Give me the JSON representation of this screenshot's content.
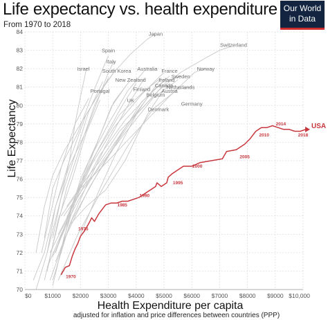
{
  "header": {
    "title": "Life expectancy vs. health expenditure",
    "subtitle": "From 1970 to 2018",
    "logo_line1": "Our World",
    "logo_line2": "in Data"
  },
  "chart_data": {
    "type": "line",
    "title": "Life expectancy vs. health expenditure",
    "subtitle": "From 1970 to 2018",
    "xlabel": "Health Expenditure per capita",
    "xlabel_note": "adjusted for inflation and price differences between countries (PPP)",
    "ylabel": "Life Expectancy",
    "xlim": [
      0,
      10000
    ],
    "ylim": [
      70,
      84
    ],
    "x_ticks": [
      0,
      1000,
      2000,
      3000,
      4000,
      5000,
      6000,
      7000,
      8000,
      9000,
      10000
    ],
    "x_tick_labels": [
      "$0",
      "$1000",
      "$2000",
      "$3000",
      "$4000",
      "$5000",
      "$6000",
      "$7000",
      "$8000",
      "$9000",
      "$10,000"
    ],
    "y_ticks": [
      70,
      71,
      72,
      73,
      74,
      75,
      76,
      77,
      78,
      79,
      80,
      81,
      82,
      83,
      84
    ],
    "grid": true,
    "colors": {
      "usa": "#c8363d",
      "others": "#c8c8c8",
      "labels": "#6e6e6e",
      "logo_bg": "#12243f",
      "logo_accent": "#ce2d2d"
    },
    "usa_series": {
      "name": "USA",
      "points": [
        {
          "x": 1300,
          "y": 70.8
        },
        {
          "x": 1450,
          "y": 71.2
        },
        {
          "x": 1600,
          "y": 71.3
        },
        {
          "x": 1700,
          "y": 71.8
        },
        {
          "x": 1800,
          "y": 72.2
        },
        {
          "x": 1900,
          "y": 72.5
        },
        {
          "x": 2000,
          "y": 72.9
        },
        {
          "x": 2150,
          "y": 73.2
        },
        {
          "x": 2300,
          "y": 73.6
        },
        {
          "x": 2400,
          "y": 73.9
        },
        {
          "x": 2500,
          "y": 73.7
        },
        {
          "x": 2650,
          "y": 74.1
        },
        {
          "x": 2800,
          "y": 74.4
        },
        {
          "x": 2900,
          "y": 74.6
        },
        {
          "x": 3100,
          "y": 74.7
        },
        {
          "x": 3300,
          "y": 74.7
        },
        {
          "x": 3500,
          "y": 74.8
        },
        {
          "x": 3700,
          "y": 74.8
        },
        {
          "x": 3900,
          "y": 74.9
        },
        {
          "x": 4100,
          "y": 75.0
        },
        {
          "x": 4300,
          "y": 75.2
        },
        {
          "x": 4500,
          "y": 75.4
        },
        {
          "x": 4700,
          "y": 75.6
        },
        {
          "x": 4750,
          "y": 75.8
        },
        {
          "x": 4900,
          "y": 75.6
        },
        {
          "x": 5100,
          "y": 75.8
        },
        {
          "x": 5150,
          "y": 76.1
        },
        {
          "x": 5300,
          "y": 76.3
        },
        {
          "x": 5500,
          "y": 76.5
        },
        {
          "x": 5700,
          "y": 76.7
        },
        {
          "x": 6000,
          "y": 76.7
        },
        {
          "x": 6300,
          "y": 76.9
        },
        {
          "x": 6700,
          "y": 77.0
        },
        {
          "x": 7100,
          "y": 77.1
        },
        {
          "x": 7250,
          "y": 77.5
        },
        {
          "x": 7600,
          "y": 77.6
        },
        {
          "x": 7900,
          "y": 77.9
        },
        {
          "x": 8100,
          "y": 78.2
        },
        {
          "x": 8300,
          "y": 78.6
        },
        {
          "x": 8500,
          "y": 78.8
        },
        {
          "x": 8700,
          "y": 78.8
        },
        {
          "x": 8900,
          "y": 78.9
        },
        {
          "x": 9100,
          "y": 78.8
        },
        {
          "x": 9300,
          "y": 78.7
        },
        {
          "x": 9500,
          "y": 78.7
        },
        {
          "x": 9700,
          "y": 78.6
        },
        {
          "x": 9900,
          "y": 78.6
        },
        {
          "x": 10100,
          "y": 78.7
        }
      ],
      "year_labels": [
        {
          "year": "1970",
          "x": 1650,
          "y": 70.7
        },
        {
          "year": "1975",
          "x": 2100,
          "y": 73.3
        },
        {
          "year": "1985",
          "x": 3500,
          "y": 74.6
        },
        {
          "year": "1990",
          "x": 4300,
          "y": 75.1
        },
        {
          "year": "1995",
          "x": 5500,
          "y": 75.8
        },
        {
          "year": "2000",
          "x": 6200,
          "y": 76.7
        },
        {
          "year": "2005",
          "x": 7900,
          "y": 77.2
        },
        {
          "year": "2010",
          "x": 8600,
          "y": 78.4
        },
        {
          "year": "2014",
          "x": 9200,
          "y": 79.0
        },
        {
          "year": "2018",
          "x": 10000,
          "y": 78.4
        }
      ]
    },
    "countries": [
      {
        "name": "Japan",
        "x": 4700,
        "y": 83.9,
        "points": [
          [
            400,
            72.0
          ],
          [
            700,
            74.5
          ],
          [
            1000,
            76.2
          ],
          [
            1400,
            77.5
          ],
          [
            2000,
            79.0
          ],
          [
            2600,
            80.5
          ],
          [
            3200,
            81.8
          ],
          [
            3800,
            82.8
          ],
          [
            4400,
            83.6
          ],
          [
            4700,
            83.9
          ]
        ]
      },
      {
        "name": "Switzerland",
        "x": 7500,
        "y": 83.3,
        "points": [
          [
            2000,
            73.0
          ],
          [
            2700,
            75.5
          ],
          [
            3300,
            77.5
          ],
          [
            4000,
            79.5
          ],
          [
            4800,
            80.8
          ],
          [
            5600,
            81.8
          ],
          [
            6400,
            82.5
          ],
          [
            7000,
            83.0
          ],
          [
            7400,
            83.2
          ]
        ]
      },
      {
        "name": "Spain",
        "x": 3000,
        "y": 83.0,
        "points": [
          [
            700,
            72.8
          ],
          [
            1000,
            75.5
          ],
          [
            1400,
            77.0
          ],
          [
            1900,
            78.5
          ],
          [
            2400,
            80.5
          ],
          [
            2800,
            82.0
          ],
          [
            3000,
            82.7
          ]
        ]
      },
      {
        "name": "Italy",
        "x": 3100,
        "y": 82.4,
        "points": [
          [
            800,
            72.0
          ],
          [
            1100,
            74.5
          ],
          [
            1600,
            76.7
          ],
          [
            2200,
            78.6
          ],
          [
            2600,
            80.2
          ],
          [
            3000,
            81.8
          ],
          [
            3200,
            82.4
          ]
        ]
      },
      {
        "name": "Israel",
        "x": 2100,
        "y": 82.0,
        "points": [
          [
            1000,
            72.8
          ],
          [
            1300,
            75.0
          ],
          [
            1600,
            77.0
          ],
          [
            1800,
            79.0
          ],
          [
            2000,
            80.5
          ],
          [
            2200,
            81.9
          ]
        ]
      },
      {
        "name": "South Korea",
        "x": 3300,
        "y": 81.9,
        "points": [
          [
            300,
            70.5
          ],
          [
            700,
            72.0
          ],
          [
            1100,
            74.5
          ],
          [
            1600,
            77.0
          ],
          [
            2200,
            79.5
          ],
          [
            2800,
            81.0
          ],
          [
            3300,
            82.0
          ]
        ]
      },
      {
        "name": "Australia",
        "x": 4400,
        "y": 82.0,
        "points": [
          [
            1200,
            71.5
          ],
          [
            1700,
            74.5
          ],
          [
            2300,
            77.0
          ],
          [
            3000,
            79.0
          ],
          [
            3700,
            80.8
          ],
          [
            4300,
            81.9
          ]
        ]
      },
      {
        "name": "France",
        "x": 5200,
        "y": 81.9,
        "points": [
          [
            1100,
            72.0
          ],
          [
            1700,
            74.5
          ],
          [
            2400,
            76.8
          ],
          [
            3200,
            78.8
          ],
          [
            4200,
            80.6
          ],
          [
            5000,
            81.8
          ]
        ]
      },
      {
        "name": "Norway",
        "x": 6500,
        "y": 82.0,
        "points": [
          [
            1300,
            74.0
          ],
          [
            2000,
            75.5
          ],
          [
            3000,
            77.0
          ],
          [
            4000,
            78.6
          ],
          [
            5200,
            80.5
          ],
          [
            6100,
            81.8
          ],
          [
            6500,
            82.0
          ]
        ]
      },
      {
        "name": "Sweden",
        "x": 5600,
        "y": 81.6,
        "points": [
          [
            1500,
            74.5
          ],
          [
            2100,
            75.8
          ],
          [
            2700,
            77.0
          ],
          [
            3400,
            78.6
          ],
          [
            4300,
            80.0
          ],
          [
            5100,
            81.3
          ],
          [
            5600,
            81.6
          ]
        ]
      },
      {
        "name": "Ireland",
        "x": 5100,
        "y": 81.4,
        "points": [
          [
            800,
            71.2
          ],
          [
            1300,
            73.0
          ],
          [
            1900,
            74.8
          ],
          [
            2700,
            76.8
          ],
          [
            3700,
            79.0
          ],
          [
            4600,
            80.8
          ],
          [
            5100,
            81.5
          ]
        ]
      },
      {
        "name": "New Zealand",
        "x": 3800,
        "y": 81.4,
        "points": [
          [
            1000,
            71.8
          ],
          [
            1500,
            73.5
          ],
          [
            2000,
            76.0
          ],
          [
            2600,
            78.0
          ],
          [
            3200,
            80.2
          ],
          [
            3800,
            81.4
          ]
        ]
      },
      {
        "name": "Canada",
        "x": 5000,
        "y": 81.1,
        "points": [
          [
            1200,
            72.5
          ],
          [
            1800,
            75.0
          ],
          [
            2600,
            77.5
          ],
          [
            3400,
            79.5
          ],
          [
            4300,
            80.8
          ],
          [
            4900,
            81.5
          ]
        ]
      },
      {
        "name": "Netherlands",
        "x": 5600,
        "y": 81.0,
        "points": [
          [
            1400,
            74.0
          ],
          [
            2000,
            75.3
          ],
          [
            2700,
            76.7
          ],
          [
            3600,
            78.5
          ],
          [
            4600,
            80.4
          ],
          [
            5500,
            81.4
          ]
        ]
      },
      {
        "name": "Finland",
        "x": 4200,
        "y": 80.9,
        "points": [
          [
            1000,
            70.5
          ],
          [
            1600,
            73.5
          ],
          [
            2200,
            75.6
          ],
          [
            2900,
            77.8
          ],
          [
            3700,
            80.0
          ],
          [
            4300,
            81.5
          ]
        ]
      },
      {
        "name": "Austria",
        "x": 5200,
        "y": 80.8,
        "points": [
          [
            900,
            70.5
          ],
          [
            1500,
            73.0
          ],
          [
            2300,
            75.5
          ],
          [
            3200,
            77.8
          ],
          [
            4200,
            80.2
          ],
          [
            5200,
            81.6
          ]
        ]
      },
      {
        "name": "Portugal",
        "x": 2700,
        "y": 80.8,
        "points": [
          [
            400,
            70.0
          ],
          [
            800,
            72.0
          ],
          [
            1300,
            75.0
          ],
          [
            1800,
            77.3
          ],
          [
            2300,
            79.7
          ],
          [
            2800,
            81.3
          ]
        ]
      },
      {
        "name": "Belgium",
        "x": 4700,
        "y": 80.6,
        "points": [
          [
            1100,
            71.5
          ],
          [
            1700,
            73.8
          ],
          [
            2500,
            76.0
          ],
          [
            3400,
            78.2
          ],
          [
            4300,
            80.2
          ],
          [
            4900,
            81.5
          ]
        ]
      },
      {
        "name": "UK",
        "x": 3800,
        "y": 80.3,
        "points": [
          [
            900,
            72.0
          ],
          [
            1400,
            73.5
          ],
          [
            2000,
            75.8
          ],
          [
            2700,
            77.8
          ],
          [
            3500,
            80.0
          ],
          [
            4000,
            81.2
          ]
        ]
      },
      {
        "name": "Denmark",
        "x": 4800,
        "y": 79.8,
        "points": [
          [
            1600,
            73.5
          ],
          [
            2200,
            74.5
          ],
          [
            2900,
            75.4
          ],
          [
            3600,
            77.0
          ],
          [
            4400,
            79.5
          ],
          [
            5000,
            80.9
          ]
        ]
      },
      {
        "name": "Germany",
        "x": 6000,
        "y": 80.1,
        "points": [
          [
            1200,
            70.5
          ],
          [
            1900,
            73.0
          ],
          [
            2800,
            75.5
          ],
          [
            3700,
            77.8
          ],
          [
            4600,
            79.8
          ],
          [
            5500,
            80.9
          ],
          [
            6000,
            81.0
          ]
        ]
      },
      {
        "name": "",
        "points": [
          [
            700,
            70.5
          ],
          [
            1100,
            73.0
          ],
          [
            1500,
            75.5
          ],
          [
            2000,
            77.8
          ],
          [
            2500,
            80.0
          ],
          [
            3000,
            81.5
          ]
        ]
      },
      {
        "name": "",
        "points": [
          [
            800,
            71.0
          ],
          [
            1200,
            73.8
          ],
          [
            1700,
            76.0
          ],
          [
            2200,
            78.5
          ],
          [
            2700,
            80.3
          ]
        ]
      },
      {
        "name": "",
        "points": [
          [
            1000,
            70.2
          ],
          [
            1400,
            72.8
          ],
          [
            1900,
            75.2
          ],
          [
            2500,
            77.6
          ],
          [
            3100,
            79.9
          ],
          [
            3600,
            81.0
          ]
        ]
      },
      {
        "name": "",
        "points": [
          [
            600,
            72.0
          ],
          [
            900,
            74.0
          ],
          [
            1300,
            76.6
          ],
          [
            1800,
            79.0
          ],
          [
            2300,
            80.4
          ]
        ]
      },
      {
        "name": "",
        "points": [
          [
            1200,
            73.0
          ],
          [
            1900,
            75.0
          ],
          [
            2700,
            77.3
          ],
          [
            3600,
            79.2
          ],
          [
            4400,
            80.5
          ]
        ]
      }
    ]
  }
}
